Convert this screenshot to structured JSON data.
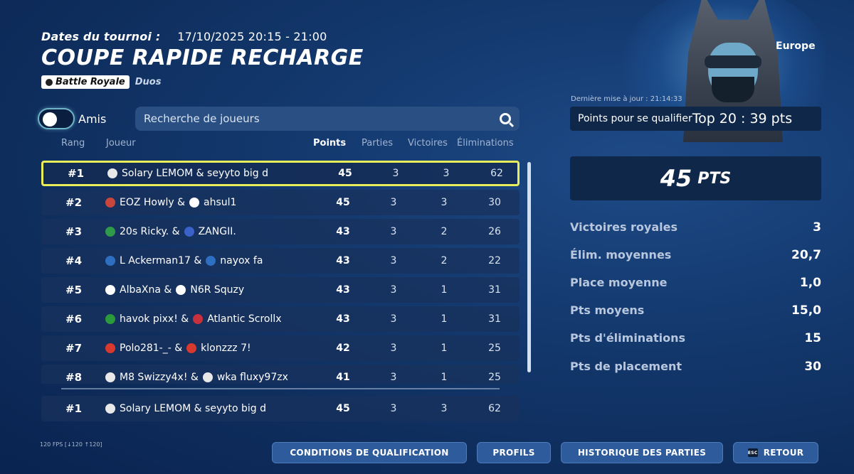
{
  "header": {
    "dates_label": "Dates du tournoi :",
    "dates_value": "17/10/2025 20:15 - 21:00",
    "title": "COUPE RAPIDE RECHARGE",
    "mode_badge": "Battle Royale",
    "mode_sub": "Duos"
  },
  "filters": {
    "friends_label": "Amis",
    "search_placeholder": "Recherche de joueurs"
  },
  "table": {
    "headers": {
      "rank": "Rang",
      "player": "Joueur",
      "points": "Points",
      "matches": "Parties",
      "wins": "Victoires",
      "elims": "Éliminations"
    },
    "rows": [
      {
        "rank": "#1",
        "flag1": "#e8e8e8",
        "flag2": "",
        "player": "Solary LEMOM & seyyto big d",
        "points": "45",
        "matches": "3",
        "wins": "3",
        "elims": "62"
      },
      {
        "rank": "#2",
        "flag1": "#c9463d",
        "flag2": "#ffffff",
        "player": "EOZ Howly & ",
        "player2": "ahsul1",
        "points": "45",
        "matches": "3",
        "wins": "3",
        "elims": "30"
      },
      {
        "rank": "#3",
        "flag1": "#2e9a4a",
        "flag2": "#3a62c9",
        "player": "20s Ricky. & ",
        "player2": "ZANGII.",
        "points": "43",
        "matches": "3",
        "wins": "2",
        "elims": "26"
      },
      {
        "rank": "#4",
        "flag1": "#2f6fc1",
        "flag2": "#2f6fc1",
        "player": "L Ackerman17 & ",
        "player2": "nayox fa",
        "points": "43",
        "matches": "3",
        "wins": "2",
        "elims": "22"
      },
      {
        "rank": "#5",
        "flag1": "#ffffff",
        "flag2": "#ffffff",
        "player": "AlbaXna & ",
        "player2": "N6R Squzy",
        "points": "43",
        "matches": "3",
        "wins": "1",
        "elims": "31"
      },
      {
        "rank": "#6",
        "flag1": "#2a9a3c",
        "flag2": "#c9303d",
        "player": "havok pixx! & ",
        "player2": "Atlantic Scrollx",
        "points": "43",
        "matches": "3",
        "wins": "1",
        "elims": "31"
      },
      {
        "rank": "#7",
        "flag1": "#d7392e",
        "flag2": "#d7392e",
        "player": "Polo281-_- & ",
        "player2": "klonzzz 7!",
        "points": "42",
        "matches": "3",
        "wins": "1",
        "elims": "25"
      },
      {
        "rank": "#8",
        "flag1": "#e8e8e8",
        "flag2": "#e8e8e8",
        "player": "M8 Swizzy4x! & ",
        "player2": "wka fluxy97zx",
        "points": "41",
        "matches": "3",
        "wins": "1",
        "elims": "25"
      }
    ],
    "my_row": {
      "rank": "#1",
      "player": "Solary LEMOM & seyyto big d",
      "points": "45",
      "matches": "3",
      "wins": "3",
      "elims": "62"
    }
  },
  "side": {
    "region": "Europe",
    "updated": "Dernière mise à jour : 21:14:33",
    "qual_label": "Points pour se qualifier",
    "qual_value": "Top 20 : 39 pts",
    "total_points": "45",
    "total_unit": "PTS",
    "stats": [
      {
        "label": "Victoires royales",
        "value": "3"
      },
      {
        "label": "Élim. moyennes",
        "value": "20,7"
      },
      {
        "label": "Place moyenne",
        "value": "1,0"
      },
      {
        "label": "Pts moyens",
        "value": "15,0"
      },
      {
        "label": "Pts d'éliminations",
        "value": "15"
      },
      {
        "label": "Pts de placement",
        "value": "30"
      }
    ]
  },
  "footer": {
    "fps": "120 FPS [↓120 ↑120]",
    "btn_conditions": "CONDITIONS DE QUALIFICATION",
    "btn_profiles": "PROFILS",
    "btn_history": "HISTORIQUE DES PARTIES",
    "btn_back_key": "ESC",
    "btn_back": "RETOUR"
  },
  "colors": {
    "selected_outline": "#e8ee5a",
    "panel": "#0f2748",
    "button": "#2e5b9b"
  }
}
